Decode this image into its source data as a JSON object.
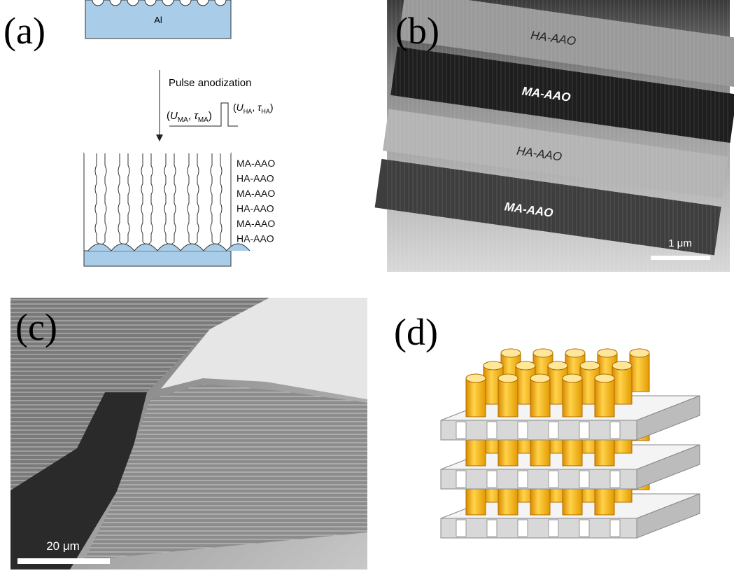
{
  "panels": [
    {
      "label": "(a)",
      "substrate": "Al",
      "process": "Pulse anodization",
      "pulse_ma": {
        "open": "(",
        "u": "U",
        "u_sub": "MA",
        "sep": ", ",
        "tau": "τ",
        "tau_sub": "MA",
        "close": ")"
      },
      "pulse_ha": {
        "open": "(",
        "u": "U",
        "u_sub": "HA",
        "sep": ", ",
        "tau": "τ",
        "tau_sub": "HA",
        "close": ")"
      },
      "layers": [
        "MA-AAO",
        "HA-AAO",
        "MA-AAO",
        "HA-AAO",
        "MA-AAO",
        "HA-AAO"
      ]
    },
    {
      "label": "(b)",
      "bands": [
        "HA-AAO",
        "MA-AAO",
        "HA-AAO",
        "MA-AAO"
      ],
      "scale_bar": "1 μm"
    },
    {
      "label": "(c)",
      "scale_bar": "20 μm"
    },
    {
      "label": "(d)"
    }
  ]
}
